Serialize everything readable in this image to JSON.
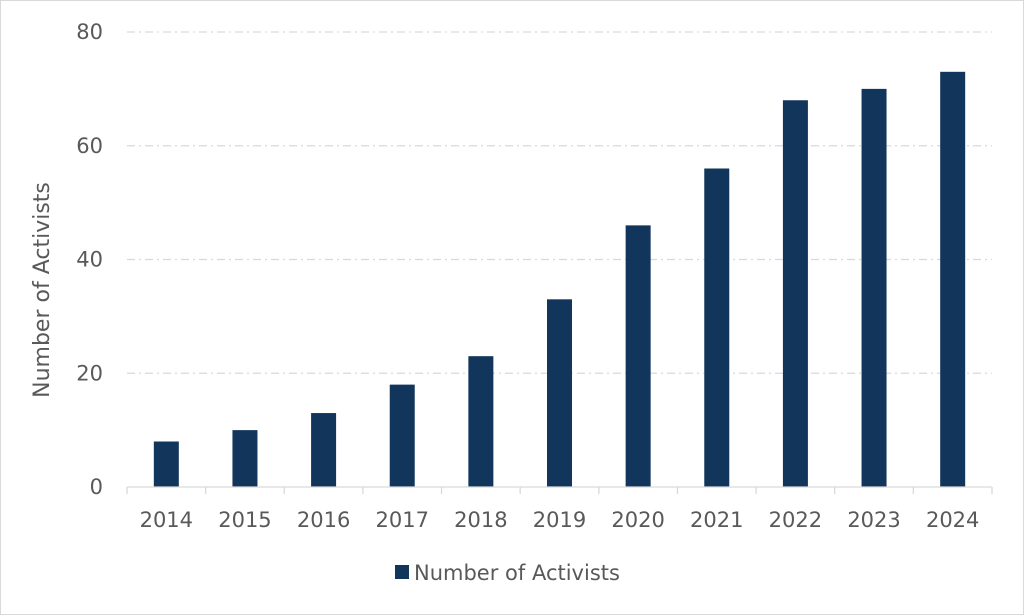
{
  "chart_data": {
    "type": "bar",
    "title": "",
    "xlabel": "",
    "ylabel": "Number of Activists",
    "categories": [
      "2014",
      "2015",
      "2016",
      "2017",
      "2018",
      "2019",
      "2020",
      "2021",
      "2022",
      "2023",
      "2024"
    ],
    "series": [
      {
        "name": "Number of Activists",
        "color": "#12355b",
        "values": [
          8,
          10,
          13,
          18,
          23,
          33,
          46,
          56,
          68,
          70,
          73
        ]
      }
    ],
    "ylim": [
      0,
      80
    ],
    "yticks": [
      0,
      20,
      40,
      60,
      80
    ],
    "grid": true,
    "legend": "bottom"
  }
}
